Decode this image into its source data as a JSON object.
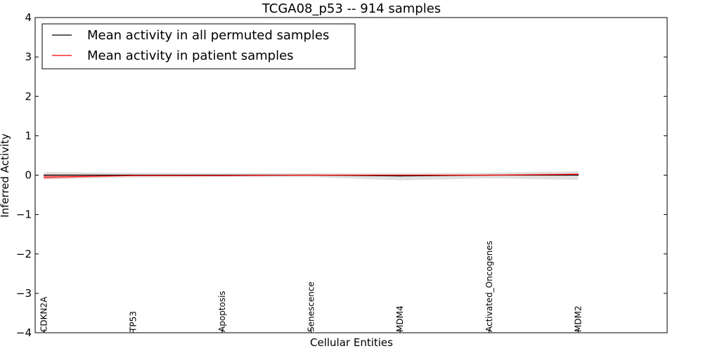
{
  "chart_data": {
    "type": "line",
    "title": "TCGA08_p53 -- 914 samples",
    "xlabel": "Cellular Entities",
    "ylabel": "Inferred Activity",
    "ylim": [
      -4,
      4
    ],
    "yticks": [
      4,
      3,
      2,
      1,
      0,
      -1,
      -2,
      -3,
      -4
    ],
    "ytick_labels": [
      "4",
      "3",
      "2",
      "1",
      "0",
      "−1",
      "−2",
      "−3",
      "−4"
    ],
    "xlim": [
      -0.1,
      7.0
    ],
    "categories": [
      "CDKN2A",
      "TP53",
      "Apoptosis",
      "Senescence",
      "MDM4",
      "Activated_Oncogenes",
      "MDM2"
    ],
    "legend_position": "top-left",
    "series": [
      {
        "name": "Mean activity in all permuted samples",
        "color": "#000000",
        "values": [
          0.0,
          0.0,
          0.0,
          0.0,
          -0.02,
          0.0,
          0.0
        ],
        "band_low": [
          -0.1,
          -0.06,
          -0.05,
          -0.05,
          -0.13,
          -0.08,
          -0.12
        ],
        "band_high": [
          0.08,
          0.06,
          0.05,
          0.05,
          0.05,
          0.06,
          0.1
        ],
        "band_color": "#cccccc"
      },
      {
        "name": "Mean activity in patient samples",
        "color": "#ff0000",
        "values": [
          -0.05,
          -0.01,
          -0.01,
          0.0,
          0.0,
          0.0,
          0.02
        ],
        "band_low": [
          -0.1,
          -0.02,
          -0.02,
          -0.01,
          -0.01,
          -0.01,
          0.0
        ],
        "band_high": [
          0.02,
          0.01,
          0.01,
          0.01,
          0.01,
          0.01,
          0.05
        ],
        "band_color": "#f08080"
      }
    ]
  }
}
